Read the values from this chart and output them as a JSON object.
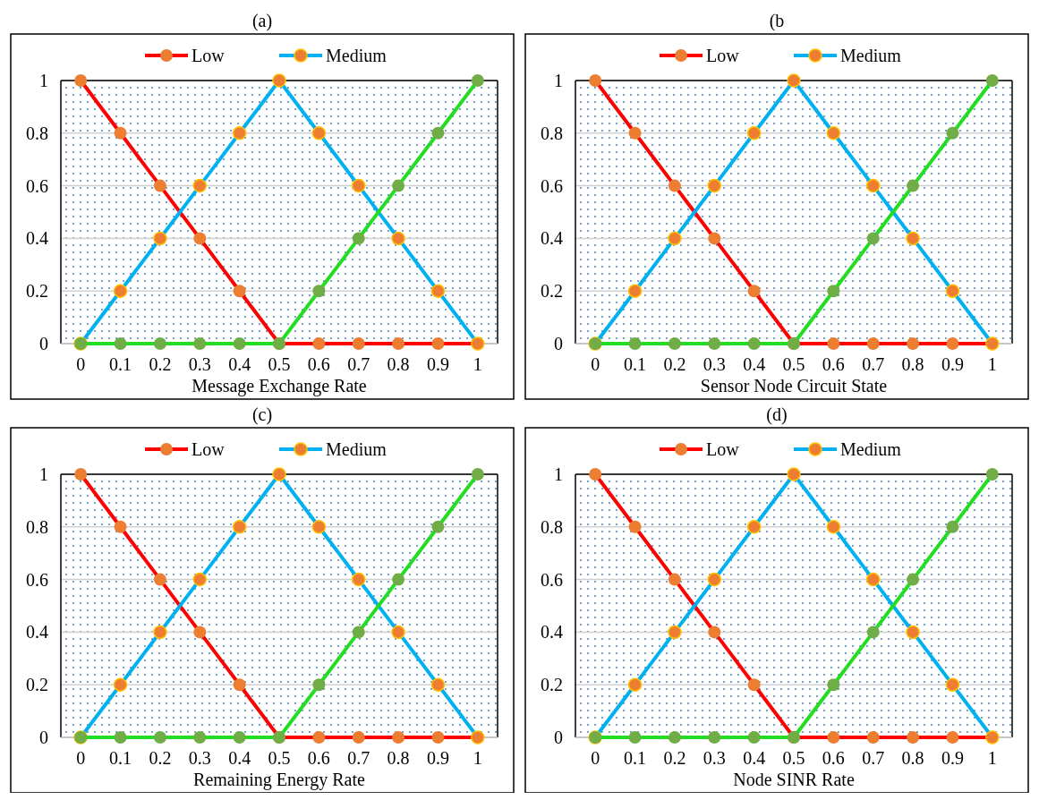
{
  "chart_data": [
    {
      "type": "line",
      "title": "(a)",
      "xlabel": "Message Exchange Rate",
      "categories": [
        "0",
        "0.1",
        "0.2",
        "0.3",
        "0.4",
        "0.5",
        "0.6",
        "0.7",
        "0.8",
        "0.9",
        "1"
      ],
      "ylim": [
        0,
        1
      ],
      "yticks": [
        0,
        0.2,
        0.4,
        0.6,
        0.8,
        1
      ],
      "grid": "y",
      "legend": "top",
      "marker": "circle",
      "line_style": "solid",
      "series": [
        {
          "name": "Low",
          "color": "#ff0000",
          "values": [
            1,
            0.8,
            0.6,
            0.4,
            0.2,
            0,
            0,
            0,
            0,
            0,
            0
          ]
        },
        {
          "name": "Medium",
          "color": "#00b0f0",
          "values": [
            0,
            0.2,
            0.4,
            0.6,
            0.8,
            1,
            0.8,
            0.6,
            0.4,
            0.2,
            0
          ]
        },
        {
          "color": "#22dd22",
          "values": [
            0,
            0,
            0,
            0,
            0,
            0,
            0.2,
            0.4,
            0.6,
            0.8,
            1
          ]
        }
      ]
    },
    {
      "type": "line",
      "title": "(b",
      "xlabel": "Sensor Node Circuit State",
      "categories": [
        "0",
        "0.1",
        "0.2",
        "0.3",
        "0.4",
        "0.5",
        "0.6",
        "0.7",
        "0.8",
        "0.9",
        "1"
      ],
      "ylim": [
        0,
        1
      ],
      "yticks": [
        0,
        0.2,
        0.4,
        0.6,
        0.8,
        1
      ],
      "grid": "y",
      "legend": "top",
      "marker": "circle",
      "line_style": "solid",
      "series": [
        {
          "name": "Low",
          "color": "#ff0000",
          "values": [
            1,
            0.8,
            0.6,
            0.4,
            0.2,
            0,
            0,
            0,
            0,
            0,
            0
          ]
        },
        {
          "name": "Medium",
          "color": "#00b0f0",
          "values": [
            0,
            0.2,
            0.4,
            0.6,
            0.8,
            1,
            0.8,
            0.6,
            0.4,
            0.2,
            0
          ]
        },
        {
          "color": "#22dd22",
          "values": [
            0,
            0,
            0,
            0,
            0,
            0,
            0.2,
            0.4,
            0.6,
            0.8,
            1
          ]
        }
      ]
    },
    {
      "type": "line",
      "title": "(c)",
      "xlabel": "Remaining Energy Rate",
      "categories": [
        "0",
        "0.1",
        "0.2",
        "0.3",
        "0.4",
        "0.5",
        "0.6",
        "0.7",
        "0.8",
        "0.9",
        "1"
      ],
      "ylim": [
        0,
        1
      ],
      "yticks": [
        0,
        0.2,
        0.4,
        0.6,
        0.8,
        1
      ],
      "grid": "y",
      "legend": "top",
      "marker": "circle",
      "line_style": "solid",
      "series": [
        {
          "name": "Low",
          "color": "#ff0000",
          "values": [
            1,
            0.8,
            0.6,
            0.4,
            0.2,
            0,
            0,
            0,
            0,
            0,
            0
          ]
        },
        {
          "name": "Medium",
          "color": "#00b0f0",
          "values": [
            0,
            0.2,
            0.4,
            0.6,
            0.8,
            1,
            0.8,
            0.6,
            0.4,
            0.2,
            0
          ]
        },
        {
          "color": "#22dd22",
          "values": [
            0,
            0,
            0,
            0,
            0,
            0,
            0.2,
            0.4,
            0.6,
            0.8,
            1
          ]
        }
      ]
    },
    {
      "type": "line",
      "title": "(d)",
      "xlabel": "Node SINR Rate",
      "categories": [
        "0",
        "0.1",
        "0.2",
        "0.3",
        "0.4",
        "0.5",
        "0.6",
        "0.7",
        "0.8",
        "0.9",
        "1"
      ],
      "ylim": [
        0,
        1
      ],
      "yticks": [
        0,
        0.2,
        0.4,
        0.6,
        0.8,
        1
      ],
      "grid": "y",
      "legend": "top",
      "marker": "circle",
      "line_style": "solid",
      "series": [
        {
          "name": "Low",
          "color": "#ff0000",
          "values": [
            1,
            0.8,
            0.6,
            0.4,
            0.2,
            0,
            0,
            0,
            0,
            0,
            0
          ]
        },
        {
          "name": "Medium",
          "color": "#00b0f0",
          "values": [
            0,
            0.2,
            0.4,
            0.6,
            0.8,
            1,
            0.8,
            0.6,
            0.4,
            0.2,
            0
          ]
        },
        {
          "color": "#22dd22",
          "values": [
            0,
            0,
            0,
            0,
            0,
            0,
            0.2,
            0.4,
            0.6,
            0.8,
            1
          ]
        }
      ]
    }
  ]
}
